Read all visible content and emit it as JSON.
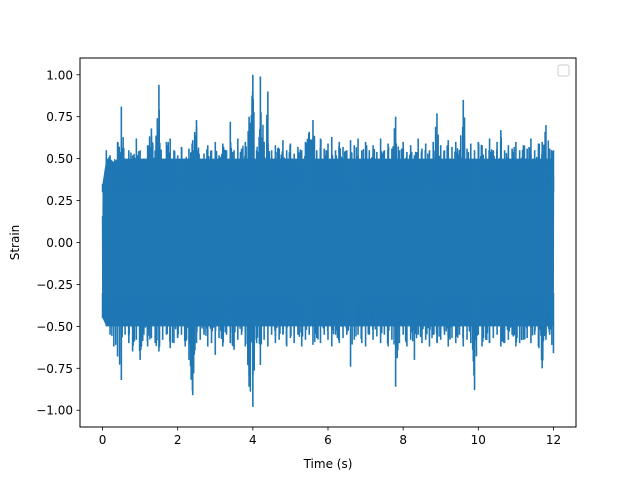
{
  "chart_data": {
    "type": "line",
    "title": "",
    "xlabel": "Time (s)",
    "ylabel": "Strain",
    "xlim": [
      -0.6,
      12.6
    ],
    "ylim": [
      -1.1,
      1.1
    ],
    "x_ticks": [
      0,
      2,
      4,
      6,
      8,
      10,
      12
    ],
    "x_tick_labels": [
      "0",
      "2",
      "4",
      "6",
      "8",
      "10",
      "12"
    ],
    "y_ticks": [
      -1.0,
      -0.75,
      -0.5,
      -0.25,
      0.0,
      0.25,
      0.5,
      0.75,
      1.0
    ],
    "y_tick_labels": [
      "−1.00",
      "−0.75",
      "−0.50",
      "−0.25",
      "0.00",
      "0.25",
      "0.50",
      "0.75",
      "1.00"
    ],
    "grid": false,
    "legend": {
      "placement": "top-right",
      "entries": []
    },
    "series": [
      {
        "color": "#1f77b4",
        "envelope_x": [
          0.0,
          0.1,
          0.2,
          0.3,
          0.4,
          0.5,
          0.6,
          0.7,
          0.8,
          0.9,
          1.0,
          1.1,
          1.2,
          1.3,
          1.4,
          1.5,
          1.6,
          1.7,
          1.8,
          1.9,
          2.0,
          2.1,
          2.2,
          2.3,
          2.4,
          2.5,
          2.6,
          2.7,
          2.8,
          2.9,
          3.0,
          3.1,
          3.2,
          3.3,
          3.4,
          3.5,
          3.6,
          3.7,
          3.8,
          3.9,
          4.0,
          4.1,
          4.2,
          4.3,
          4.4,
          4.5,
          4.6,
          4.7,
          4.8,
          4.9,
          5.0,
          5.1,
          5.2,
          5.3,
          5.4,
          5.5,
          5.6,
          5.7,
          5.8,
          5.9,
          6.0,
          6.1,
          6.2,
          6.3,
          6.4,
          6.5,
          6.6,
          6.7,
          6.8,
          6.9,
          7.0,
          7.1,
          7.2,
          7.3,
          7.4,
          7.5,
          7.6,
          7.7,
          7.8,
          7.9,
          8.0,
          8.1,
          8.2,
          8.3,
          8.4,
          8.5,
          8.6,
          8.7,
          8.8,
          8.9,
          9.0,
          9.1,
          9.2,
          9.3,
          9.4,
          9.5,
          9.6,
          9.7,
          9.8,
          9.9,
          10.0,
          10.1,
          10.2,
          10.3,
          10.4,
          10.5,
          10.6,
          10.7,
          10.8,
          10.9,
          11.0,
          11.1,
          11.2,
          11.3,
          11.4,
          11.5,
          11.6,
          11.7,
          11.8,
          11.9,
          12.0
        ],
        "envelope_max": [
          0.35,
          0.55,
          0.52,
          0.48,
          0.6,
          0.81,
          0.5,
          0.55,
          0.52,
          0.62,
          0.55,
          0.5,
          0.58,
          0.68,
          0.55,
          0.94,
          0.5,
          0.6,
          0.62,
          0.55,
          0.52,
          0.57,
          0.5,
          0.56,
          0.61,
          0.73,
          0.5,
          0.53,
          0.58,
          0.55,
          0.6,
          0.52,
          0.59,
          0.55,
          0.72,
          0.55,
          0.62,
          0.56,
          0.6,
          0.75,
          1.0,
          0.55,
          0.99,
          0.6,
          0.9,
          0.55,
          0.58,
          0.56,
          0.61,
          0.55,
          0.59,
          0.53,
          0.57,
          0.55,
          0.6,
          0.66,
          0.73,
          0.55,
          0.62,
          0.56,
          0.59,
          0.63,
          0.55,
          0.6,
          0.57,
          0.55,
          0.61,
          0.58,
          0.62,
          0.55,
          0.6,
          0.55,
          0.58,
          0.54,
          0.62,
          0.55,
          0.59,
          0.56,
          0.75,
          0.55,
          0.6,
          0.54,
          0.58,
          0.52,
          0.62,
          0.56,
          0.59,
          0.55,
          0.6,
          0.77,
          0.58,
          0.55,
          0.61,
          0.57,
          0.6,
          0.55,
          0.85,
          0.56,
          0.59,
          0.55,
          0.6,
          0.58,
          0.56,
          0.62,
          0.55,
          0.6,
          0.67,
          0.55,
          0.58,
          0.56,
          0.6,
          0.55,
          0.58,
          0.56,
          0.62,
          0.55,
          0.59,
          0.6,
          0.7,
          0.56,
          0.55
        ],
        "envelope_min": [
          -0.45,
          -0.5,
          -0.55,
          -0.62,
          -0.68,
          -0.82,
          -0.55,
          -0.6,
          -0.65,
          -0.58,
          -0.7,
          -0.55,
          -0.62,
          -0.57,
          -0.6,
          -0.65,
          -0.58,
          -0.55,
          -0.63,
          -0.6,
          -0.57,
          -0.55,
          -0.62,
          -0.7,
          -0.91,
          -0.6,
          -0.58,
          -0.55,
          -0.62,
          -0.6,
          -0.67,
          -0.57,
          -0.62,
          -0.55,
          -0.6,
          -0.64,
          -0.58,
          -0.55,
          -0.62,
          -0.86,
          -0.98,
          -0.6,
          -0.73,
          -0.58,
          -0.62,
          -0.55,
          -0.6,
          -0.58,
          -0.55,
          -0.62,
          -0.57,
          -0.6,
          -0.55,
          -0.62,
          -0.58,
          -0.55,
          -0.61,
          -0.57,
          -0.6,
          -0.55,
          -0.58,
          -0.62,
          -0.55,
          -0.6,
          -0.57,
          -0.55,
          -0.74,
          -0.58,
          -0.55,
          -0.6,
          -0.62,
          -0.55,
          -0.58,
          -0.56,
          -0.6,
          -0.55,
          -0.62,
          -0.58,
          -0.86,
          -0.6,
          -0.55,
          -0.62,
          -0.58,
          -0.7,
          -0.55,
          -0.6,
          -0.58,
          -0.62,
          -0.55,
          -0.6,
          -0.58,
          -0.55,
          -0.62,
          -0.57,
          -0.6,
          -0.55,
          -0.62,
          -0.58,
          -0.6,
          -0.88,
          -0.55,
          -0.62,
          -0.58,
          -0.6,
          -0.57,
          -0.55,
          -0.62,
          -0.6,
          -0.58,
          -0.55,
          -0.62,
          -0.6,
          -0.58,
          -0.57,
          -0.6,
          -0.55,
          -0.62,
          -0.75,
          -0.58,
          -0.55,
          -0.66
        ]
      }
    ]
  }
}
